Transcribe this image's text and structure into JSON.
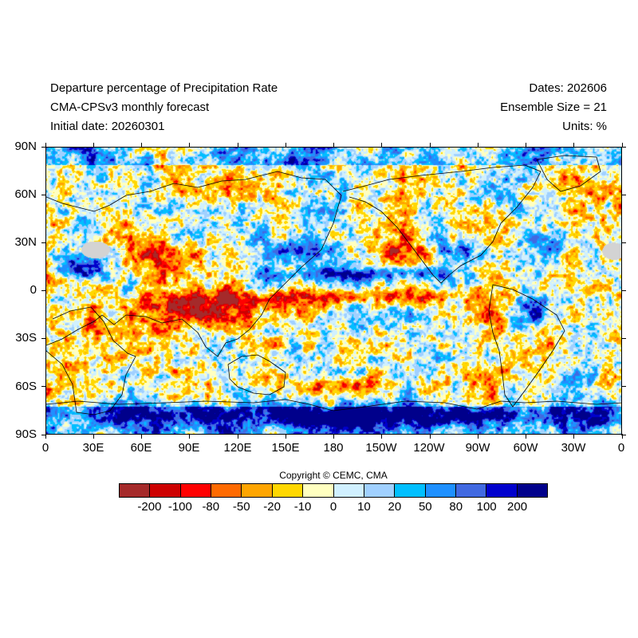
{
  "header": {
    "title": "Departure percentage of Precipitation Rate",
    "model": "CMA-CPSv3 monthly forecast",
    "initial_date": "Initial date: 20260301",
    "dates": "Dates: 202606",
    "ensemble": "Ensemble Size = 21",
    "units": "Units: %"
  },
  "map": {
    "projection": "cylindrical-equidistant",
    "lon_range": [
      0,
      360
    ],
    "lat_range": [
      -90,
      90
    ],
    "lat_labels": [
      "90N",
      "60N",
      "30N",
      "0",
      "30S",
      "60S",
      "90S"
    ],
    "lon_labels": [
      "0",
      "30E",
      "60E",
      "90E",
      "120E",
      "150E",
      "180",
      "150W",
      "120W",
      "90W",
      "60W",
      "30W",
      "0"
    ],
    "missing_color": "#d3d3d3",
    "coastline_color": "#000000"
  },
  "copyright": "Copyright © CEMC, CMA",
  "colorbar": {
    "colors": [
      "#a52a2a",
      "#cd0000",
      "#ff0000",
      "#ff6a00",
      "#ffa500",
      "#ffd700",
      "#ffffc0",
      "#d0f0ff",
      "#a0d0ff",
      "#00bfff",
      "#1e90ff",
      "#4169e1",
      "#0000cd",
      "#00008b"
    ],
    "labels": [
      "-200",
      "-100",
      "-80",
      "-50",
      "-20",
      "-10",
      "0",
      "10",
      "20",
      "50",
      "80",
      "100",
      "200"
    ]
  }
}
